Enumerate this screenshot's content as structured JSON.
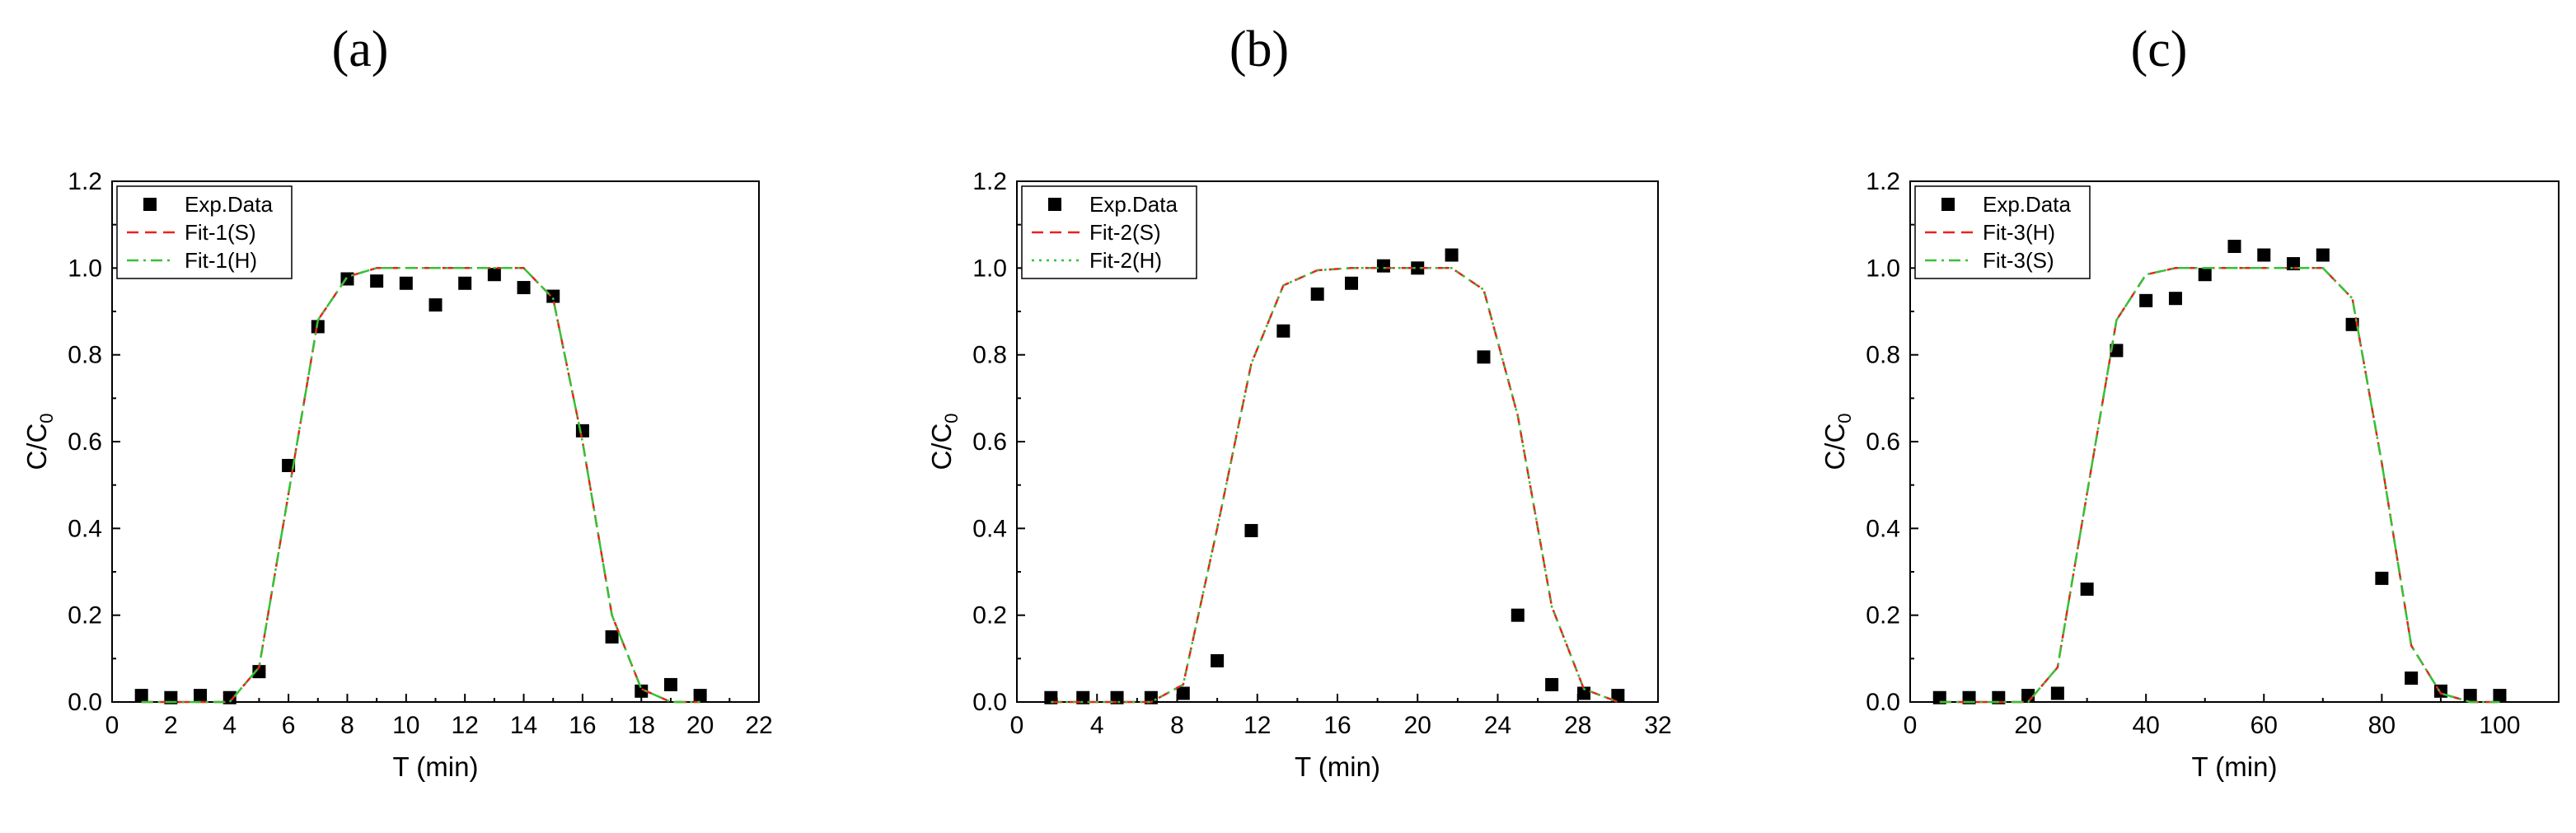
{
  "chart_data": [
    {
      "type": "scatter",
      "panel_label": "(a)",
      "xlabel": "T (min)",
      "ylabel": "C/C",
      "ylabel_sub": "0",
      "xlim": [
        0,
        22
      ],
      "ylim": [
        0,
        1.2
      ],
      "xticks": [
        "0",
        "2",
        "4",
        "6",
        "8",
        "10",
        "12",
        "14",
        "16",
        "18",
        "20",
        "22"
      ],
      "yticks": [
        "0.0",
        "0.2",
        "0.4",
        "0.6",
        "0.8",
        "1.0",
        "1.2"
      ],
      "legend_position": "top-left",
      "series": [
        {
          "name": "Exp.Data",
          "kind": "points",
          "color": "#000000",
          "x": [
            1,
            2,
            3,
            4,
            5,
            6,
            7,
            8,
            9,
            10,
            11,
            12,
            13,
            14,
            15,
            16,
            17,
            18,
            19,
            20
          ],
          "y": [
            0.015,
            0.01,
            0.015,
            0.01,
            0.07,
            0.545,
            0.865,
            0.975,
            0.97,
            0.965,
            0.915,
            0.965,
            0.985,
            0.955,
            0.935,
            0.625,
            0.15,
            0.025,
            0.04,
            0.015
          ]
        },
        {
          "name": "Fit-1(S)",
          "kind": "dashed",
          "color": "#e8221e",
          "x": [
            1,
            2,
            3,
            4,
            5,
            6,
            7,
            8,
            9,
            10,
            11,
            12,
            13,
            14,
            15,
            16,
            17,
            18,
            19,
            20
          ],
          "y": [
            0.0,
            0.0,
            0.0,
            0.0,
            0.08,
            0.48,
            0.88,
            0.98,
            1.0,
            1.0,
            1.0,
            1.0,
            1.0,
            1.0,
            0.93,
            0.6,
            0.2,
            0.03,
            0.0,
            0.0
          ]
        },
        {
          "name": "Fit-1(H)",
          "kind": "dashdot",
          "color": "#36c136",
          "x": [
            1,
            2,
            3,
            4,
            5,
            6,
            7,
            8,
            9,
            10,
            11,
            12,
            13,
            14,
            15,
            16,
            17,
            18,
            19,
            20
          ],
          "y": [
            0.0,
            0.0,
            0.0,
            0.0,
            0.08,
            0.48,
            0.88,
            0.98,
            1.0,
            1.0,
            1.0,
            1.0,
            1.0,
            1.0,
            0.93,
            0.6,
            0.2,
            0.03,
            0.0,
            0.0
          ]
        }
      ]
    },
    {
      "type": "scatter",
      "panel_label": "(b)",
      "xlabel": "T (min)",
      "ylabel": "C/C",
      "ylabel_sub": "0",
      "xlim": [
        0,
        32
      ],
      "ylim": [
        0,
        1.2
      ],
      "xticks": [
        "0",
        "4",
        "8",
        "12",
        "16",
        "20",
        "24",
        "28",
        "32"
      ],
      "yticks": [
        "0.0",
        "0.2",
        "0.4",
        "0.6",
        "0.8",
        "1.0",
        "1.2"
      ],
      "legend_position": "top-left",
      "series": [
        {
          "name": "Exp.Data",
          "kind": "points",
          "color": "#000000",
          "x": [
            1.7,
            3.3,
            5.0,
            6.7,
            8.3,
            10.0,
            11.7,
            13.3,
            15.0,
            16.7,
            18.3,
            20.0,
            21.7,
            23.3,
            25.0,
            26.7,
            28.3,
            30.0
          ],
          "y": [
            0.01,
            0.01,
            0.01,
            0.01,
            0.02,
            0.095,
            0.395,
            0.855,
            0.94,
            0.965,
            1.005,
            1.0,
            1.03,
            0.795,
            0.2,
            0.04,
            0.02,
            0.015
          ]
        },
        {
          "name": "Fit-2(S)",
          "kind": "dashed",
          "color": "#e8221e",
          "x": [
            1.7,
            3.3,
            5.0,
            6.7,
            8.3,
            10.0,
            11.7,
            13.3,
            15.0,
            16.7,
            18.3,
            20.0,
            21.7,
            23.3,
            25.0,
            26.7,
            28.3,
            30.0
          ],
          "y": [
            0.0,
            0.0,
            0.0,
            0.0,
            0.04,
            0.4,
            0.78,
            0.96,
            0.995,
            1.0,
            1.0,
            1.0,
            1.0,
            0.95,
            0.66,
            0.22,
            0.03,
            0.0
          ]
        },
        {
          "name": "Fit-2(H)",
          "kind": "dotted",
          "color": "#36c136",
          "x": [
            1.7,
            3.3,
            5.0,
            6.7,
            8.3,
            10.0,
            11.7,
            13.3,
            15.0,
            16.7,
            18.3,
            20.0,
            21.7,
            23.3,
            25.0,
            26.7,
            28.3,
            30.0
          ],
          "y": [
            0.0,
            0.0,
            0.0,
            0.0,
            0.04,
            0.4,
            0.78,
            0.96,
            0.995,
            1.0,
            1.0,
            1.0,
            1.0,
            0.95,
            0.66,
            0.22,
            0.03,
            0.0
          ]
        }
      ]
    },
    {
      "type": "scatter",
      "panel_label": "(c)",
      "xlabel": "T (min)",
      "ylabel": "C/C",
      "ylabel_sub": "0",
      "xlim": [
        0,
        110
      ],
      "ylim": [
        0,
        1.2
      ],
      "xticks": [
        "0",
        "20",
        "40",
        "60",
        "80",
        "100"
      ],
      "yticks": [
        "0.0",
        "0.2",
        "0.4",
        "0.6",
        "0.8",
        "1.0",
        "1.2"
      ],
      "legend_position": "top-left",
      "series": [
        {
          "name": "Exp.Data",
          "kind": "points",
          "color": "#000000",
          "x": [
            5,
            10,
            15,
            20,
            25,
            30,
            35,
            40,
            45,
            50,
            55,
            60,
            65,
            70,
            75,
            80,
            85,
            90,
            95,
            100
          ],
          "y": [
            0.01,
            0.01,
            0.01,
            0.015,
            0.02,
            0.26,
            0.81,
            0.925,
            0.93,
            0.985,
            1.05,
            1.03,
            1.01,
            1.03,
            0.87,
            0.285,
            0.055,
            0.025,
            0.015,
            0.015
          ]
        },
        {
          "name": "Fit-3(H)",
          "kind": "dashed",
          "color": "#e8221e",
          "x": [
            5,
            10,
            15,
            20,
            25,
            30,
            35,
            40,
            45,
            50,
            55,
            60,
            65,
            70,
            75,
            80,
            85,
            90,
            95,
            100
          ],
          "y": [
            0.0,
            0.0,
            0.0,
            0.0,
            0.08,
            0.48,
            0.88,
            0.985,
            1.0,
            1.0,
            1.0,
            1.0,
            1.0,
            1.0,
            0.93,
            0.55,
            0.13,
            0.02,
            0.0,
            0.0
          ]
        },
        {
          "name": "Fit-3(S)",
          "kind": "dashdot",
          "color": "#36c136",
          "x": [
            5,
            10,
            15,
            20,
            25,
            30,
            35,
            40,
            45,
            50,
            55,
            60,
            65,
            70,
            75,
            80,
            85,
            90,
            95,
            100
          ],
          "y": [
            0.0,
            0.0,
            0.0,
            0.0,
            0.08,
            0.48,
            0.88,
            0.985,
            1.0,
            1.0,
            1.0,
            1.0,
            1.0,
            1.0,
            0.93,
            0.55,
            0.13,
            0.02,
            0.0,
            0.0
          ]
        }
      ]
    }
  ]
}
